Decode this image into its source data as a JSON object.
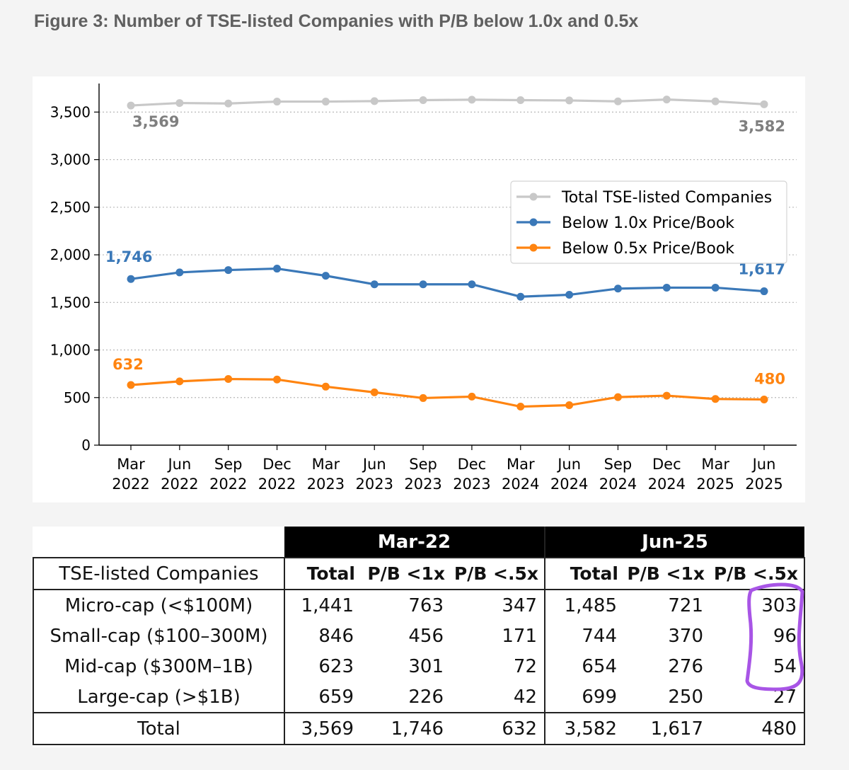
{
  "figure_title": "Figure 3: Number of TSE-listed Companies with P/B below 1.0x and 0.5x",
  "chart_data": {
    "type": "line",
    "title": "",
    "xlabel": "",
    "ylabel": "",
    "ylim": [
      0,
      3800
    ],
    "grid": "horizontal dotted",
    "legend_position": "upper-right",
    "x": [
      [
        "Mar",
        "2022"
      ],
      [
        "Jun",
        "2022"
      ],
      [
        "Sep",
        "2022"
      ],
      [
        "Dec",
        "2022"
      ],
      [
        "Mar",
        "2023"
      ],
      [
        "Jun",
        "2023"
      ],
      [
        "Sep",
        "2023"
      ],
      [
        "Dec",
        "2023"
      ],
      [
        "Mar",
        "2024"
      ],
      [
        "Jun",
        "2024"
      ],
      [
        "Sep",
        "2024"
      ],
      [
        "Dec",
        "2024"
      ],
      [
        "Mar",
        "2025"
      ],
      [
        "Jun",
        "2025"
      ]
    ],
    "yticks": [
      {
        "value": 0,
        "label": "0"
      },
      {
        "value": 500,
        "label": "500"
      },
      {
        "value": 1000,
        "label": "1,000"
      },
      {
        "value": 1500,
        "label": "1,500"
      },
      {
        "value": 2000,
        "label": "2,000"
      },
      {
        "value": 2500,
        "label": "2,500"
      },
      {
        "value": 3000,
        "label": "3,000"
      },
      {
        "value": 3500,
        "label": "3,500"
      }
    ],
    "series": [
      {
        "name": "Total TSE-listed Companies",
        "color": "#c8c8c8",
        "label_color": "#7f7f7f",
        "values": [
          3569,
          3595,
          3590,
          3610,
          3610,
          3615,
          3625,
          3630,
          3625,
          3622,
          3612,
          3632,
          3612,
          3582
        ],
        "start_label": "3,569",
        "end_label": "3,582"
      },
      {
        "name": "Below 1.0x Price/Book",
        "color": "#3a78b8",
        "label_color": "#3a78b8",
        "values": [
          1746,
          1815,
          1840,
          1855,
          1780,
          1690,
          1690,
          1690,
          1560,
          1580,
          1645,
          1655,
          1655,
          1617
        ],
        "start_label": "1,746",
        "end_label": "1,617"
      },
      {
        "name": "Below 0.5x Price/Book",
        "color": "#ff8410",
        "label_color": "#ff8410",
        "values": [
          632,
          670,
          695,
          690,
          615,
          555,
          495,
          510,
          405,
          420,
          505,
          520,
          485,
          480
        ],
        "start_label": "632",
        "end_label": "480"
      }
    ]
  },
  "table": {
    "group_headers": [
      "Mar-22",
      "Jun-25"
    ],
    "row_header_label": "TSE-listed Companies",
    "sub_headers": [
      "Total",
      "P/B <1x",
      "P/B <.5x",
      "Total",
      "P/B <1x",
      "P/B <.5x"
    ],
    "rows": [
      {
        "label": "Micro-cap (<$100M)",
        "values": [
          "1,441",
          "763",
          "347",
          "1,485",
          "721",
          "303"
        ]
      },
      {
        "label": "Small-cap ($100–300M)",
        "values": [
          "846",
          "456",
          "171",
          "744",
          "370",
          "96"
        ]
      },
      {
        "label": "Mid-cap ($300M–1B)",
        "values": [
          "623",
          "301",
          "72",
          "654",
          "276",
          "54"
        ]
      },
      {
        "label": "Large-cap (>$1B)",
        "values": [
          "659",
          "226",
          "42",
          "699",
          "250",
          "27"
        ]
      }
    ],
    "total_row": {
      "label": "Total",
      "values": [
        "3,569",
        "1,746",
        "632",
        "3,582",
        "1,617",
        "480"
      ]
    }
  },
  "annotation": {
    "color": "#a855e6"
  }
}
